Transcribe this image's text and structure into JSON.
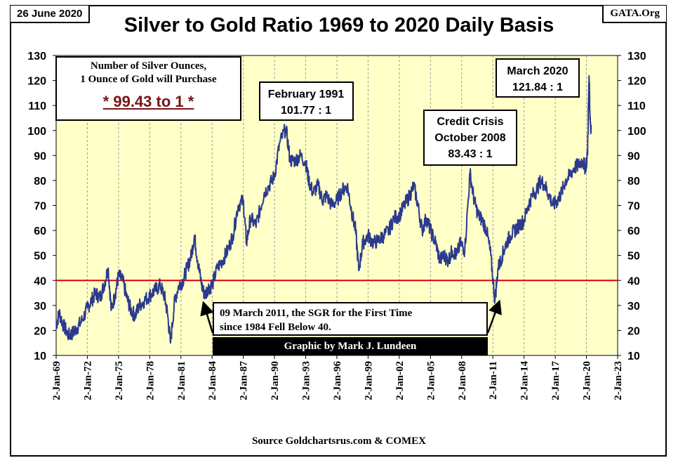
{
  "header": {
    "date": "26 June 2020",
    "site": "GATA.Org",
    "title": "Silver to Gold Ratio 1969 to 2020 Daily Basis",
    "source": "Source Goldchartsrus.com & COMEX"
  },
  "info_box": {
    "line1": "Number of Silver Ounces,",
    "line2": "1 Ounce of Gold will Purchase",
    "ratio": "* 99.43 to 1 *"
  },
  "note": {
    "line1": "09 March 2011, the SGR for the First Time",
    "line2": "since 1984 Fell Below 40."
  },
  "credit": "Graphic by Mark J. Lundeen",
  "annotations": [
    {
      "line1": "February 1991",
      "line2": "101.77 : 1",
      "x": 1991.1,
      "y": 101.77
    },
    {
      "line1": "Credit Crisis",
      "line2": "October 2008",
      "line3": "83.43 : 1",
      "x": 2008.8,
      "y": 83.43
    },
    {
      "line1": "March 2020",
      "line2": "121.84 : 1",
      "x": 2020.2,
      "y": 121.84
    }
  ],
  "colors": {
    "plot_bg": "#ffffc8",
    "line": "#2b3a8c",
    "ref_line": "#e00000",
    "grid": "#9a9a9a"
  },
  "chart_data": {
    "type": "line",
    "title": "Silver to Gold Ratio 1969 to 2020 Daily Basis",
    "xlabel": "",
    "ylabel": "",
    "ylim": [
      10,
      130
    ],
    "yticks": [
      10,
      20,
      30,
      40,
      50,
      60,
      70,
      80,
      90,
      100,
      110,
      120,
      130
    ],
    "xlim": [
      1969.0,
      2023.0
    ],
    "xtick_values": [
      1969,
      1972,
      1975,
      1978,
      1981,
      1984,
      1987,
      1990,
      1993,
      1996,
      1999,
      2002,
      2005,
      2008,
      2011,
      2014,
      2017,
      2020,
      2023
    ],
    "xtick_labels": [
      "2-Jan-69",
      "2-Jan-72",
      "2-Jan-75",
      "2-Jan-78",
      "2-Jan-81",
      "2-Jan-84",
      "2-Jan-87",
      "2-Jan-90",
      "2-Jan-93",
      "2-Jan-96",
      "2-Jan-99",
      "2-Jan-02",
      "2-Jan-05",
      "2-Jan-08",
      "2-Jan-11",
      "2-Jan-14",
      "2-Jan-17",
      "2-Jan-20",
      "2-Jan-23"
    ],
    "reference_line": {
      "y": 40
    },
    "grid": "vertical",
    "series": [
      {
        "points": [
          [
            1969.0,
            22
          ],
          [
            1969.3,
            27
          ],
          [
            1969.7,
            22
          ],
          [
            1970.2,
            18
          ],
          [
            1970.6,
            19
          ],
          [
            1971.0,
            21
          ],
          [
            1971.5,
            24
          ],
          [
            1972.0,
            29
          ],
          [
            1972.4,
            32
          ],
          [
            1972.8,
            35
          ],
          [
            1973.2,
            33
          ],
          [
            1973.6,
            38
          ],
          [
            1974.0,
            45
          ],
          [
            1974.3,
            28
          ],
          [
            1974.7,
            35
          ],
          [
            1975.0,
            42
          ],
          [
            1975.4,
            40
          ],
          [
            1975.8,
            33
          ],
          [
            1976.2,
            28
          ],
          [
            1976.6,
            26
          ],
          [
            1977.0,
            30
          ],
          [
            1977.5,
            32
          ],
          [
            1978.0,
            34
          ],
          [
            1978.5,
            36
          ],
          [
            1979.0,
            38
          ],
          [
            1979.4,
            34
          ],
          [
            1979.7,
            27
          ],
          [
            1980.0,
            15
          ],
          [
            1980.4,
            32
          ],
          [
            1980.8,
            38
          ],
          [
            1981.2,
            40
          ],
          [
            1981.6,
            45
          ],
          [
            1982.0,
            50
          ],
          [
            1982.3,
            58
          ],
          [
            1982.6,
            48
          ],
          [
            1983.0,
            38
          ],
          [
            1983.3,
            34
          ],
          [
            1983.6,
            37
          ],
          [
            1984.0,
            38
          ],
          [
            1984.5,
            45
          ],
          [
            1985.0,
            48
          ],
          [
            1985.5,
            52
          ],
          [
            1986.0,
            58
          ],
          [
            1986.5,
            70
          ],
          [
            1987.0,
            72
          ],
          [
            1987.3,
            55
          ],
          [
            1987.7,
            65
          ],
          [
            1988.2,
            62
          ],
          [
            1988.6,
            68
          ],
          [
            1989.0,
            75
          ],
          [
            1989.5,
            78
          ],
          [
            1990.0,
            82
          ],
          [
            1990.5,
            95
          ],
          [
            1991.1,
            101
          ],
          [
            1991.5,
            88
          ],
          [
            1992.0,
            88
          ],
          [
            1992.5,
            90
          ],
          [
            1993.0,
            87
          ],
          [
            1993.3,
            80
          ],
          [
            1993.7,
            75
          ],
          [
            1994.2,
            78
          ],
          [
            1994.6,
            72
          ],
          [
            1995.0,
            74
          ],
          [
            1995.5,
            70
          ],
          [
            1996.0,
            72
          ],
          [
            1996.5,
            76
          ],
          [
            1997.0,
            78
          ],
          [
            1997.4,
            68
          ],
          [
            1997.8,
            60
          ],
          [
            1998.1,
            44
          ],
          [
            1998.5,
            55
          ],
          [
            1999.0,
            58
          ],
          [
            1999.5,
            55
          ],
          [
            2000.0,
            56
          ],
          [
            2000.5,
            58
          ],
          [
            2001.0,
            60
          ],
          [
            2001.5,
            65
          ],
          [
            2002.0,
            66
          ],
          [
            2002.5,
            70
          ],
          [
            2003.0,
            74
          ],
          [
            2003.4,
            78
          ],
          [
            2003.8,
            70
          ],
          [
            2004.2,
            60
          ],
          [
            2004.6,
            65
          ],
          [
            2005.0,
            60
          ],
          [
            2005.5,
            55
          ],
          [
            2005.9,
            48
          ],
          [
            2006.3,
            50
          ],
          [
            2006.7,
            48
          ],
          [
            2007.1,
            52
          ],
          [
            2007.5,
            50
          ],
          [
            2007.9,
            55
          ],
          [
            2008.3,
            52
          ],
          [
            2008.8,
            83
          ],
          [
            2009.2,
            72
          ],
          [
            2009.6,
            66
          ],
          [
            2010.0,
            64
          ],
          [
            2010.4,
            60
          ],
          [
            2010.8,
            50
          ],
          [
            2011.2,
            32
          ],
          [
            2011.5,
            45
          ],
          [
            2011.9,
            50
          ],
          [
            2012.3,
            55
          ],
          [
            2012.7,
            58
          ],
          [
            2013.1,
            60
          ],
          [
            2013.5,
            62
          ],
          [
            2014.0,
            64
          ],
          [
            2014.4,
            70
          ],
          [
            2014.8,
            74
          ],
          [
            2015.2,
            76
          ],
          [
            2015.6,
            80
          ],
          [
            2016.0,
            78
          ],
          [
            2016.4,
            74
          ],
          [
            2016.8,
            70
          ],
          [
            2017.2,
            72
          ],
          [
            2017.6,
            75
          ],
          [
            2018.0,
            80
          ],
          [
            2018.4,
            82
          ],
          [
            2018.8,
            85
          ],
          [
            2019.2,
            86
          ],
          [
            2019.6,
            88
          ],
          [
            2019.9,
            85
          ],
          [
            2020.1,
            90
          ],
          [
            2020.25,
            121.84
          ],
          [
            2020.35,
            105
          ],
          [
            2020.45,
            100
          ]
        ]
      }
    ]
  }
}
